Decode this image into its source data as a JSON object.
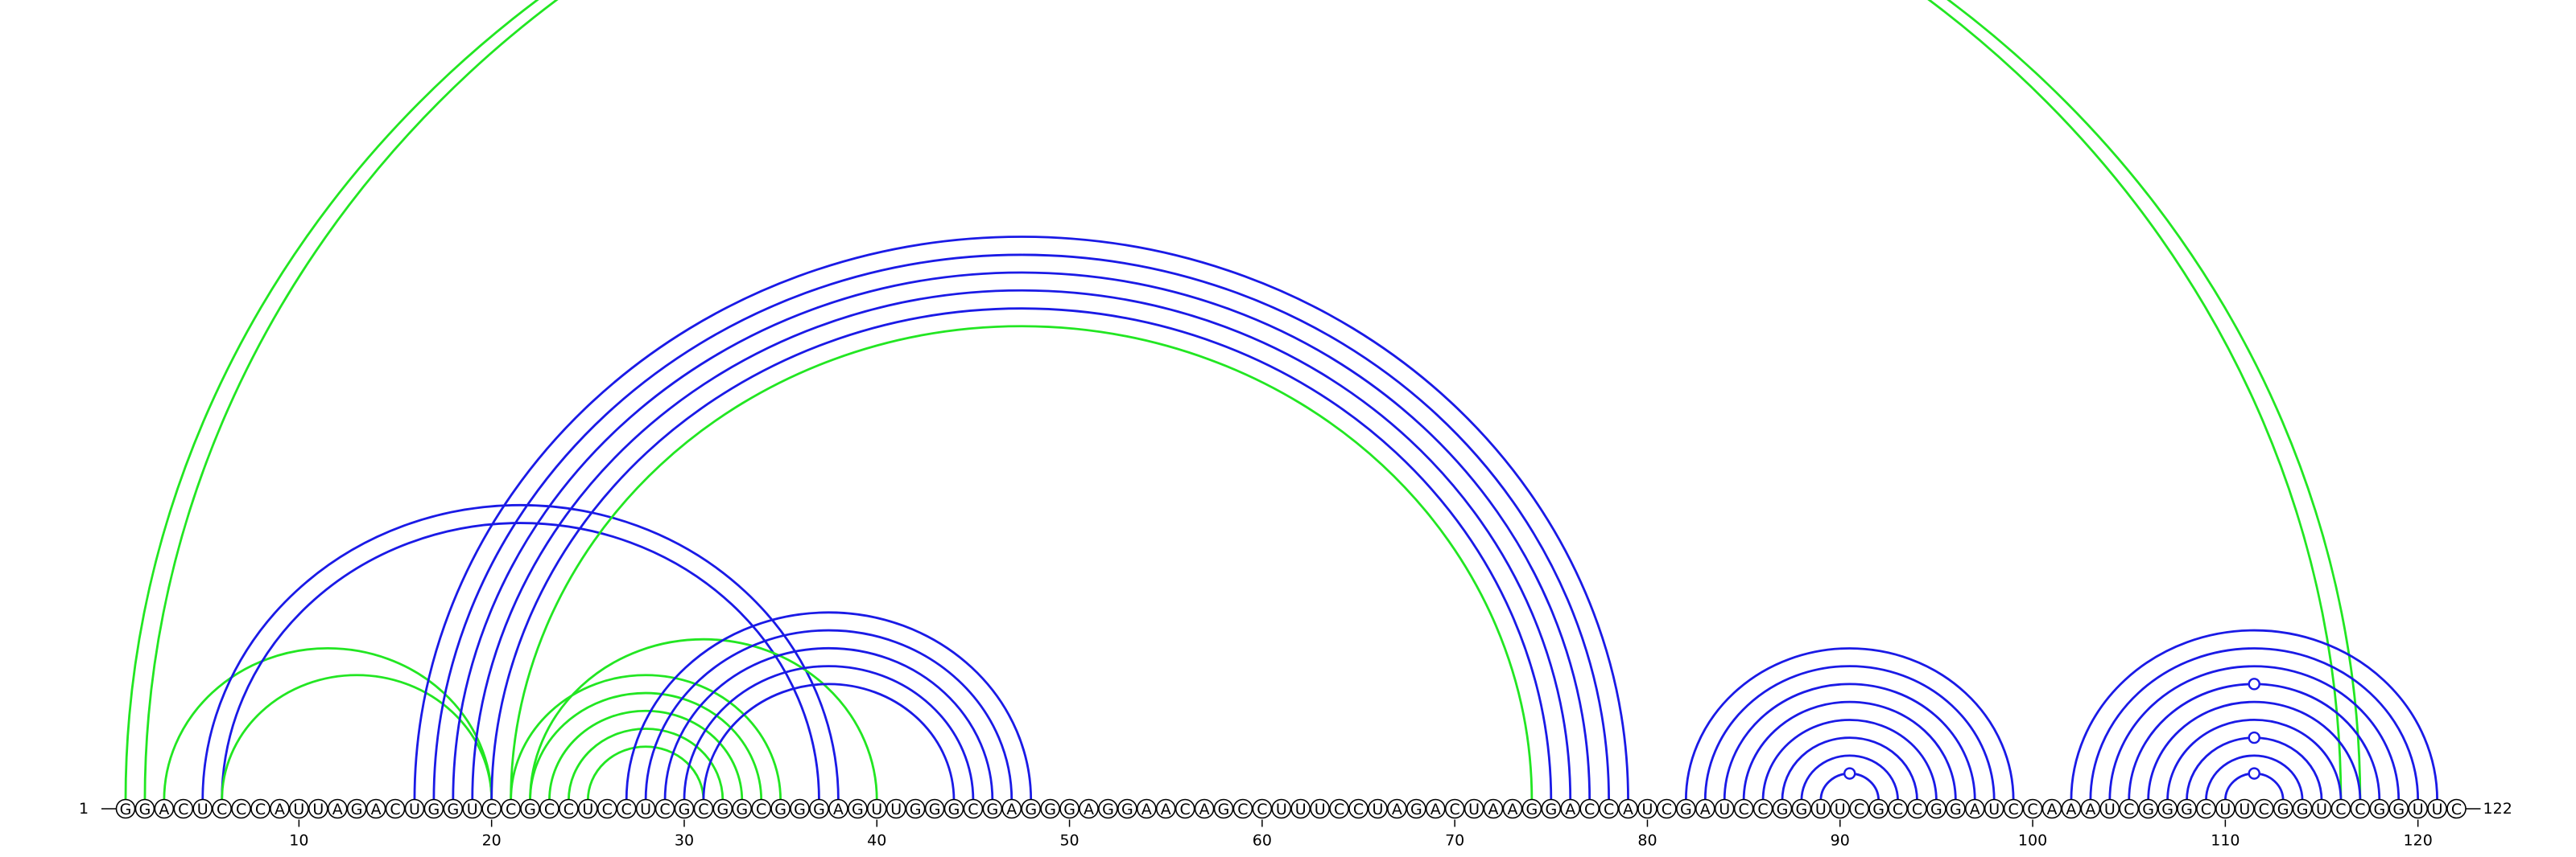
{
  "sequence": "GGACUCCCAUUAGACUGGUCCGCCUCCUCGCGGCGGGAGUUGGGCGAGGGAGGAACAGCCUUUCCUAGACUAAGGACCAUCGAUCCGGUUCGCCGGAUCCAAAUCGGGCUUCGGUCCGGUUC",
  "start_label": "1",
  "end_label": "122",
  "ticks": [
    {
      "pos": 10,
      "label": "10"
    },
    {
      "pos": 20,
      "label": "20"
    },
    {
      "pos": 30,
      "label": "30"
    },
    {
      "pos": 40,
      "label": "40"
    },
    {
      "pos": 50,
      "label": "50"
    },
    {
      "pos": 60,
      "label": "60"
    },
    {
      "pos": 70,
      "label": "70"
    },
    {
      "pos": 80,
      "label": "80"
    },
    {
      "pos": 90,
      "label": "90"
    },
    {
      "pos": 100,
      "label": "100"
    },
    {
      "pos": 110,
      "label": "110"
    },
    {
      "pos": 120,
      "label": "120"
    }
  ],
  "colors": {
    "blue": "#1a1ae6",
    "green": "#22e622"
  },
  "arcs": [
    {
      "i": 1,
      "j": 116,
      "color": "green"
    },
    {
      "i": 2,
      "j": 117,
      "color": "green"
    },
    {
      "i": 3,
      "j": 20,
      "color": "green"
    },
    {
      "i": 5,
      "j": 38,
      "color": "blue"
    },
    {
      "i": 6,
      "j": 37,
      "color": "blue"
    },
    {
      "i": 6,
      "j": 20,
      "color": "green"
    },
    {
      "i": 16,
      "j": 79,
      "color": "blue"
    },
    {
      "i": 17,
      "j": 78,
      "color": "blue"
    },
    {
      "i": 18,
      "j": 77,
      "color": "blue"
    },
    {
      "i": 19,
      "j": 76,
      "color": "blue"
    },
    {
      "i": 20,
      "j": 75,
      "color": "blue"
    },
    {
      "i": 21,
      "j": 74,
      "color": "green"
    },
    {
      "i": 21,
      "j": 35,
      "color": "green"
    },
    {
      "i": 22,
      "j": 34,
      "color": "green"
    },
    {
      "i": 23,
      "j": 33,
      "color": "green"
    },
    {
      "i": 24,
      "j": 32,
      "color": "green"
    },
    {
      "i": 25,
      "j": 31,
      "color": "green"
    },
    {
      "i": 22,
      "j": 40,
      "color": "green"
    },
    {
      "i": 27,
      "j": 48,
      "color": "blue"
    },
    {
      "i": 28,
      "j": 47,
      "color": "blue"
    },
    {
      "i": 29,
      "j": 46,
      "color": "blue"
    },
    {
      "i": 30,
      "j": 45,
      "color": "blue"
    },
    {
      "i": 31,
      "j": 44,
      "color": "blue"
    },
    {
      "i": 82,
      "j": 99,
      "color": "blue"
    },
    {
      "i": 83,
      "j": 98,
      "color": "blue"
    },
    {
      "i": 84,
      "j": 97,
      "color": "blue"
    },
    {
      "i": 85,
      "j": 96,
      "color": "blue"
    },
    {
      "i": 86,
      "j": 95,
      "color": "blue"
    },
    {
      "i": 87,
      "j": 94,
      "color": "blue"
    },
    {
      "i": 88,
      "j": 93,
      "color": "blue"
    },
    {
      "i": 89,
      "j": 92,
      "color": "blue"
    },
    {
      "i": 102,
      "j": 121,
      "color": "blue"
    },
    {
      "i": 103,
      "j": 120,
      "color": "blue"
    },
    {
      "i": 104,
      "j": 119,
      "color": "blue"
    },
    {
      "i": 105,
      "j": 118,
      "color": "blue"
    },
    {
      "i": 106,
      "j": 117,
      "color": "blue"
    },
    {
      "i": 107,
      "j": 116,
      "color": "blue"
    },
    {
      "i": 108,
      "j": 115,
      "color": "blue"
    },
    {
      "i": 109,
      "j": 114,
      "color": "blue"
    },
    {
      "i": 110,
      "j": 113,
      "color": "blue"
    }
  ],
  "markers": [
    {
      "pos": 90.5,
      "arc": [
        89,
        92
      ]
    },
    {
      "pos": 111.5,
      "arc": [
        110,
        113
      ]
    },
    {
      "pos": 111.5,
      "arc": [
        108,
        115
      ]
    },
    {
      "pos": 111.5,
      "arc": [
        105,
        118
      ]
    }
  ]
}
